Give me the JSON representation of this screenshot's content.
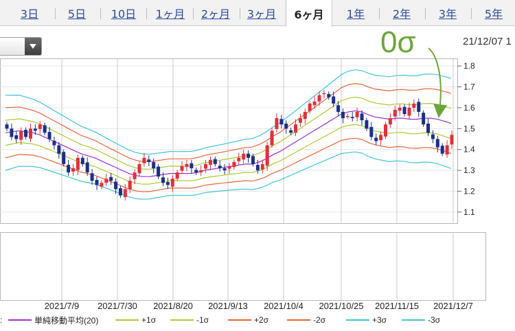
{
  "tabs": [
    "3日",
    "5日",
    "10日",
    "1ヶ月",
    "2ヶ月",
    "3ヶ月",
    "6ヶ月",
    "1年",
    "2年",
    "3年",
    "5年"
  ],
  "active_tab": "6ヶ月",
  "date_stamp": "21/12/07 1",
  "annotation": "0σ",
  "colors": {
    "up": "#e0303a",
    "down": "#1a2f8a",
    "sma": "#9b2fcf",
    "s1": "#a9c930",
    "s2": "#e0663a",
    "s3": "#3fc3da",
    "annotation": "#6aa63a"
  },
  "legend_prefix": ":",
  "chart_data": {
    "type": "candlestick",
    "ylim": [
      1.05,
      1.83
    ],
    "yticks": [
      "1.8",
      "1.7",
      "1.6",
      "1.5",
      "1.4",
      "1.3",
      "1.2",
      "1.1"
    ],
    "ytick_values": [
      1.8,
      1.7,
      1.6,
      1.5,
      1.4,
      1.3,
      1.2,
      1.1
    ],
    "x_labels": [
      "2021/7/9",
      "2021/7/30",
      "2021/8/20",
      "2021/9/13",
      "2021/10/4",
      "2021/10/25",
      "2021/11/15",
      "2021/12/7"
    ],
    "legend": [
      {
        "label": "単純移動平均(20)",
        "color": "#9b2fcf"
      },
      {
        "label": "+1σ",
        "color": "#a9c930"
      },
      {
        "label": "-1σ",
        "color": "#a9c930"
      },
      {
        "label": "+2σ",
        "color": "#e0663a"
      },
      {
        "label": "-2σ",
        "color": "#e0663a"
      },
      {
        "label": "+3σ",
        "color": "#3fc3da"
      },
      {
        "label": "-3σ",
        "color": "#3fc3da"
      }
    ],
    "closes": [
      1.5,
      1.46,
      1.45,
      1.49,
      1.46,
      1.5,
      1.49,
      1.52,
      1.48,
      1.45,
      1.42,
      1.38,
      1.33,
      1.29,
      1.31,
      1.36,
      1.33,
      1.29,
      1.25,
      1.23,
      1.24,
      1.26,
      1.25,
      1.21,
      1.18,
      1.21,
      1.25,
      1.29,
      1.33,
      1.36,
      1.34,
      1.31,
      1.27,
      1.24,
      1.23,
      1.26,
      1.29,
      1.32,
      1.33,
      1.31,
      1.29,
      1.3,
      1.33,
      1.35,
      1.33,
      1.31,
      1.3,
      1.32,
      1.34,
      1.36,
      1.38,
      1.36,
      1.33,
      1.3,
      1.33,
      1.42,
      1.49,
      1.55,
      1.52,
      1.5,
      1.48,
      1.52,
      1.55,
      1.58,
      1.62,
      1.63,
      1.66,
      1.67,
      1.65,
      1.62,
      1.58,
      1.55,
      1.56,
      1.55,
      1.58,
      1.54,
      1.5,
      1.46,
      1.44,
      1.47,
      1.52,
      1.55,
      1.59,
      1.6,
      1.57,
      1.6,
      1.62,
      1.58,
      1.52,
      1.48,
      1.45,
      1.41,
      1.38,
      1.42,
      1.47
    ],
    "sma": [
      1.48,
      1.485,
      1.49,
      1.485,
      1.48,
      1.47,
      1.455,
      1.44,
      1.425,
      1.41,
      1.395,
      1.38,
      1.37,
      1.36,
      1.345,
      1.33,
      1.315,
      1.3,
      1.285,
      1.275,
      1.27,
      1.27,
      1.275,
      1.28,
      1.285,
      1.285,
      1.285,
      1.285,
      1.29,
      1.3,
      1.305,
      1.31,
      1.315,
      1.32,
      1.325,
      1.33,
      1.33,
      1.34,
      1.355,
      1.375,
      1.39,
      1.41,
      1.43,
      1.45,
      1.47,
      1.49,
      1.51,
      1.53,
      1.55,
      1.57,
      1.58,
      1.585,
      1.58,
      1.565,
      1.555,
      1.55,
      1.545,
      1.55,
      1.55,
      1.545,
      1.545,
      1.55,
      1.55,
      1.545,
      1.535,
      1.525
    ]
  }
}
